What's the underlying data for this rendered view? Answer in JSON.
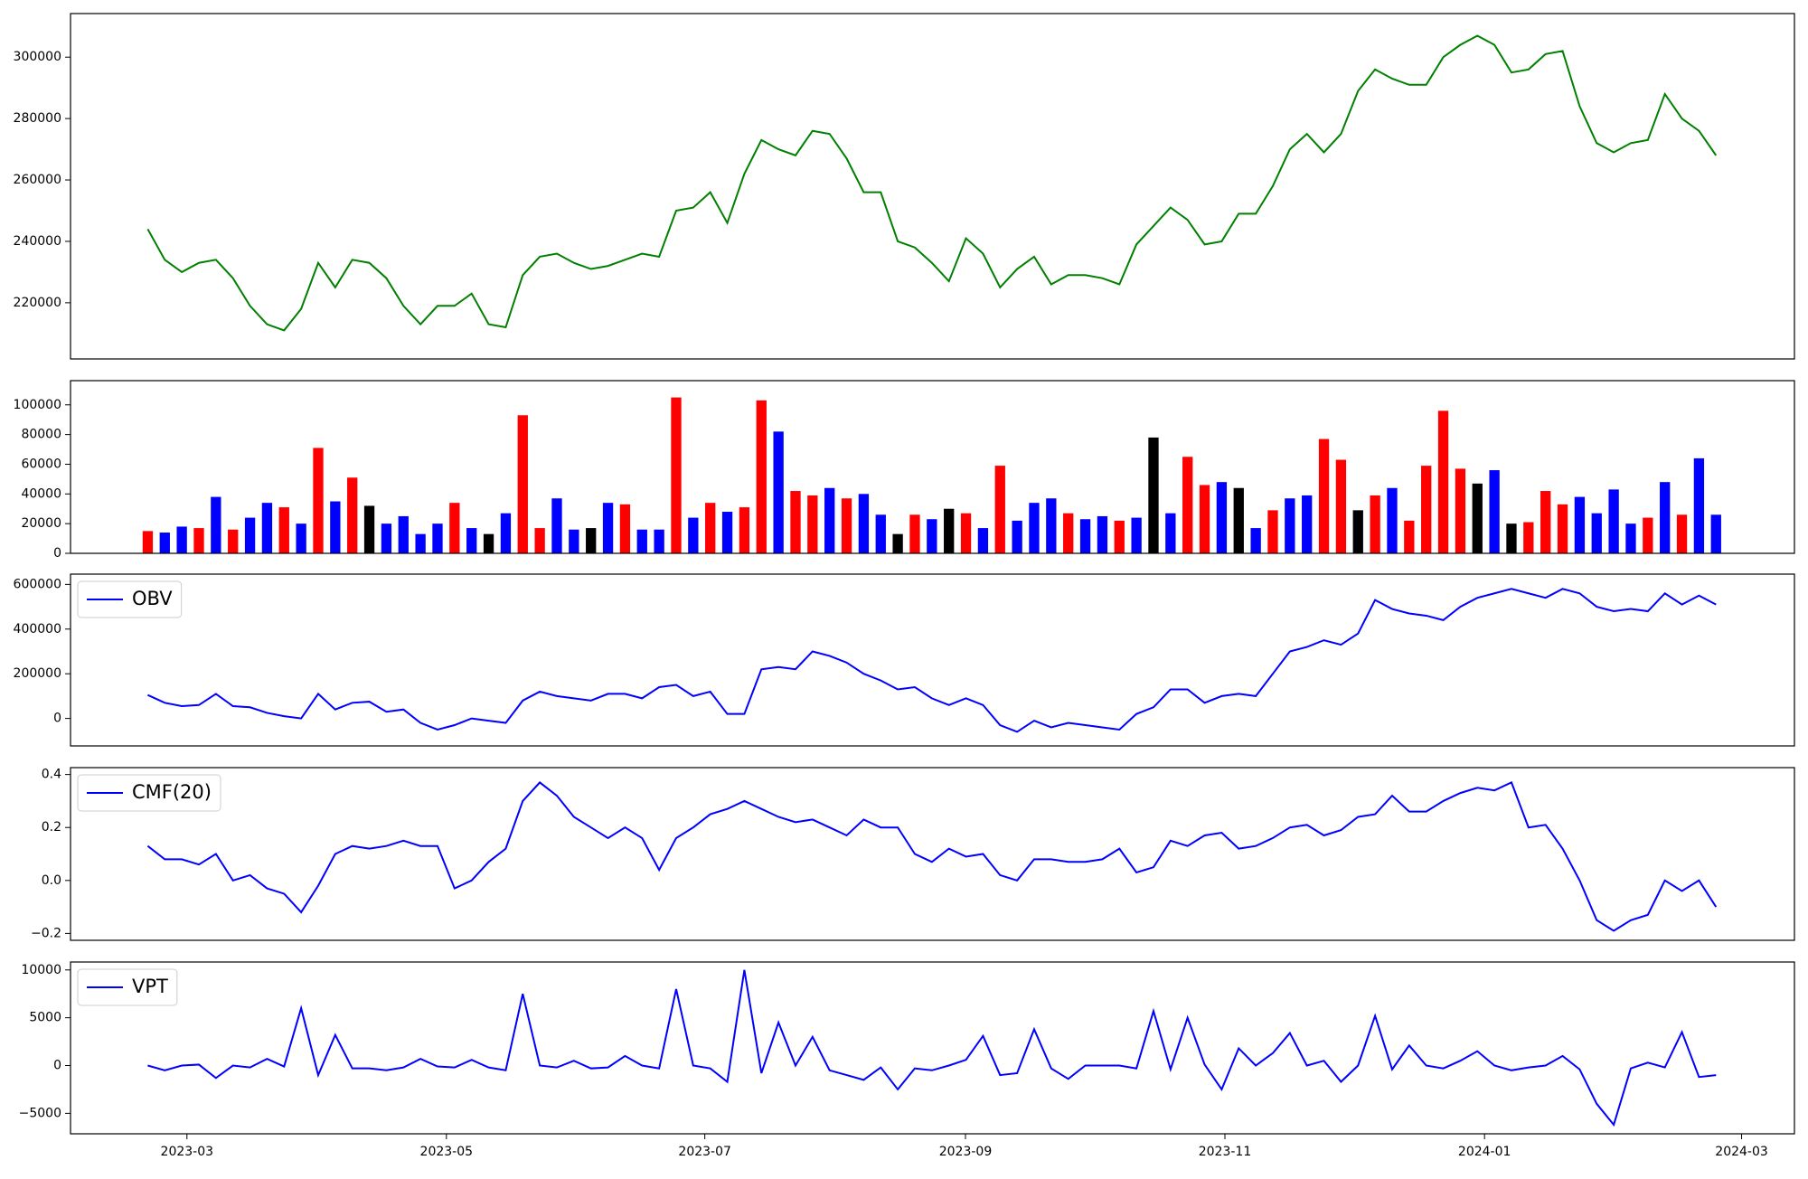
{
  "chart_data": {
    "type": "panels",
    "xlim": [
      -4.53,
      96.6
    ],
    "xticks": [
      {
        "value": 2.3,
        "label": "2023-03"
      },
      {
        "value": 17.52,
        "label": "2023-05"
      },
      {
        "value": 32.68,
        "label": "2023-07"
      },
      {
        "value": 47.97,
        "label": "2023-09"
      },
      {
        "value": 63.19,
        "label": "2023-11"
      },
      {
        "value": 78.42,
        "label": "2024-01"
      },
      {
        "value": 93.5,
        "label": "2024-03"
      }
    ],
    "panels": [
      {
        "type": "line",
        "ylim": [
          201700,
          314200
        ],
        "yticks": [
          220000,
          240000,
          260000,
          280000,
          300000
        ],
        "series": [
          {
            "color": "green",
            "values": [
              244000,
              234000,
              230000,
              233000,
              234000,
              228000,
              219000,
              213000,
              211000,
              218000,
              233000,
              225000,
              234000,
              233000,
              228000,
              219000,
              213000,
              219000,
              219000,
              223000,
              213000,
              212000,
              229000,
              235000,
              236000,
              233000,
              231000,
              232000,
              234000,
              236000,
              235000,
              250000,
              251000,
              256000,
              246000,
              262000,
              273000,
              270000,
              268000,
              276000,
              275000,
              267000,
              256000,
              256000,
              240000,
              238000,
              233000,
              227000,
              241000,
              236000,
              225000,
              231000,
              235000,
              226000,
              229000,
              229000,
              228000,
              226000,
              239000,
              245000,
              251000,
              247000,
              239000,
              240000,
              249000,
              249000,
              258000,
              270000,
              275000,
              269000,
              275000,
              289000,
              296000,
              293000,
              291000,
              291000,
              300000,
              304000,
              307000,
              304000,
              295000,
              296000,
              301000,
              302000,
              284000,
              272000,
              269000,
              272000,
              273000,
              288000,
              280000,
              276000,
              268000
            ]
          }
        ]
      },
      {
        "type": "bar",
        "ylim": [
          0,
          116300
        ],
        "yticks": [
          0,
          20000,
          40000,
          60000,
          80000,
          100000
        ],
        "values": [
          15000,
          14000,
          18000,
          17000,
          38000,
          16000,
          24000,
          34000,
          31000,
          20000,
          71000,
          35000,
          51000,
          32000,
          20000,
          25000,
          13000,
          20000,
          34000,
          17000,
          13000,
          27000,
          93000,
          17000,
          37000,
          16000,
          17000,
          34000,
          33000,
          16000,
          16000,
          105000,
          24000,
          34000,
          28000,
          31000,
          103000,
          82000,
          42000,
          39000,
          44000,
          37000,
          40000,
          26000,
          13000,
          26000,
          23000,
          30000,
          27000,
          17000,
          59000,
          22000,
          34000,
          37000,
          27000,
          23000,
          25000,
          22000,
          24000,
          78000,
          27000,
          65000,
          46000,
          48000,
          44000,
          17000,
          29000,
          37000,
          39000,
          77000,
          63000,
          29000,
          39000,
          44000,
          22000,
          59000,
          96000,
          57000,
          47000,
          56000,
          20000,
          21000,
          42000,
          33000,
          38000,
          27000,
          43000,
          20000,
          24000,
          48000,
          26000,
          64000,
          26000
        ],
        "colors": [
          "red",
          "blue",
          "blue",
          "red",
          "blue",
          "red",
          "blue",
          "blue",
          "red",
          "blue",
          "red",
          "blue",
          "red",
          "black",
          "blue",
          "blue",
          "blue",
          "blue",
          "red",
          "blue",
          "black",
          "blue",
          "red",
          "red",
          "blue",
          "blue",
          "black",
          "blue",
          "red",
          "blue",
          "blue",
          "red",
          "blue",
          "red",
          "blue",
          "red",
          "red",
          "blue",
          "red",
          "red",
          "blue",
          "red",
          "blue",
          "blue",
          "black",
          "red",
          "blue",
          "black",
          "red",
          "blue",
          "red",
          "blue",
          "blue",
          "blue",
          "red",
          "blue",
          "blue",
          "red",
          "blue",
          "black",
          "blue",
          "red",
          "red",
          "blue",
          "black",
          "blue",
          "red",
          "blue",
          "blue",
          "red",
          "red",
          "black",
          "red",
          "blue",
          "red",
          "red",
          "red",
          "red",
          "black",
          "blue",
          "black",
          "red",
          "red",
          "red",
          "blue",
          "blue",
          "blue",
          "blue",
          "red",
          "blue",
          "red",
          "blue",
          "blue"
        ]
      },
      {
        "type": "line",
        "ylim": [
          -123000,
          646000
        ],
        "yticks": [
          0,
          200000,
          400000,
          600000
        ],
        "legend": "upper left",
        "series": [
          {
            "name": "OBV",
            "color": "blue",
            "values": [
              105000,
              70000,
              55000,
              60000,
              110000,
              55000,
              50000,
              25000,
              10000,
              0,
              110000,
              40000,
              70000,
              75000,
              30000,
              40000,
              -20000,
              -50000,
              -30000,
              0,
              -10000,
              -20000,
              80000,
              120000,
              100000,
              90000,
              80000,
              110000,
              110000,
              90000,
              140000,
              150000,
              100000,
              120000,
              20000,
              20000,
              220000,
              230000,
              220000,
              300000,
              280000,
              250000,
              200000,
              170000,
              130000,
              140000,
              90000,
              60000,
              90000,
              60000,
              -30000,
              -60000,
              -10000,
              -40000,
              -20000,
              -30000,
              -40000,
              -50000,
              20000,
              50000,
              130000,
              130000,
              70000,
              100000,
              110000,
              100000,
              200000,
              300000,
              320000,
              350000,
              330000,
              380000,
              530000,
              490000,
              470000,
              460000,
              440000,
              500000,
              540000,
              560000,
              580000,
              560000,
              540000,
              580000,
              560000,
              500000,
              480000,
              490000,
              480000,
              560000,
              510000,
              550000,
              510000
            ]
          }
        ]
      },
      {
        "type": "line",
        "ylim": [
          -0.226,
          0.426
        ],
        "yticks": [
          {
            "value": -0.2,
            "label": "−0.2"
          },
          {
            "value": 0,
            "label": "0.0"
          },
          0.2,
          0.4
        ],
        "legend": "upper left",
        "series": [
          {
            "name": "CMF(20)",
            "color": "blue",
            "values": [
              0.13,
              0.08,
              0.08,
              0.06,
              0.1,
              0.0,
              0.02,
              -0.03,
              -0.05,
              -0.12,
              -0.02,
              0.1,
              0.13,
              0.12,
              0.13,
              0.15,
              0.13,
              0.13,
              -0.03,
              0.0,
              0.07,
              0.12,
              0.3,
              0.37,
              0.32,
              0.24,
              0.2,
              0.16,
              0.2,
              0.16,
              0.04,
              0.16,
              0.2,
              0.25,
              0.27,
              0.3,
              0.27,
              0.24,
              0.22,
              0.23,
              0.2,
              0.17,
              0.23,
              0.2,
              0.2,
              0.1,
              0.07,
              0.12,
              0.09,
              0.1,
              0.02,
              0.0,
              0.08,
              0.08,
              0.07,
              0.07,
              0.08,
              0.12,
              0.03,
              0.05,
              0.15,
              0.13,
              0.17,
              0.18,
              0.12,
              0.13,
              0.16,
              0.2,
              0.21,
              0.17,
              0.19,
              0.24,
              0.25,
              0.32,
              0.26,
              0.26,
              0.3,
              0.33,
              0.35,
              0.34,
              0.37,
              0.2,
              0.21,
              0.12,
              0.0,
              -0.15,
              -0.19,
              -0.15,
              -0.13,
              0.0,
              -0.04,
              0.0,
              -0.1
            ]
          }
        ]
      },
      {
        "type": "line",
        "ylim": [
          -7140,
          10830
        ],
        "yticks": [
          {
            "value": -5000,
            "label": "−5000"
          },
          0,
          5000,
          10000
        ],
        "legend": "upper left",
        "series": [
          {
            "name": "VPT",
            "color": "blue",
            "values": [
              0,
              -500,
              0,
              100,
              -1300,
              0,
              -200,
              700,
              -100,
              6000,
              -1000,
              3200,
              -300,
              -300,
              -500,
              -200,
              700,
              -100,
              -200,
              600,
              -200,
              -500,
              7500,
              0,
              -200,
              500,
              -300,
              -200,
              1000,
              0,
              -300,
              8000,
              0,
              -300,
              -1700,
              10000,
              -800,
              4500,
              0,
              3000,
              -500,
              -1000,
              -1500,
              -200,
              -2500,
              -300,
              -500,
              0,
              600,
              3100,
              -1000,
              -800,
              3800,
              -300,
              -1400,
              0,
              0,
              0,
              -300,
              5700,
              -400,
              5000,
              100,
              -2500,
              1800,
              0,
              1300,
              3400,
              0,
              500,
              -1700,
              0,
              5200,
              -400,
              2100,
              0,
              -300,
              500,
              1500,
              0,
              -500,
              -200,
              0,
              1000,
              -400,
              -4000,
              -6200,
              -300,
              300,
              -200,
              3500,
              -1200,
              -1000
            ]
          }
        ]
      }
    ]
  }
}
